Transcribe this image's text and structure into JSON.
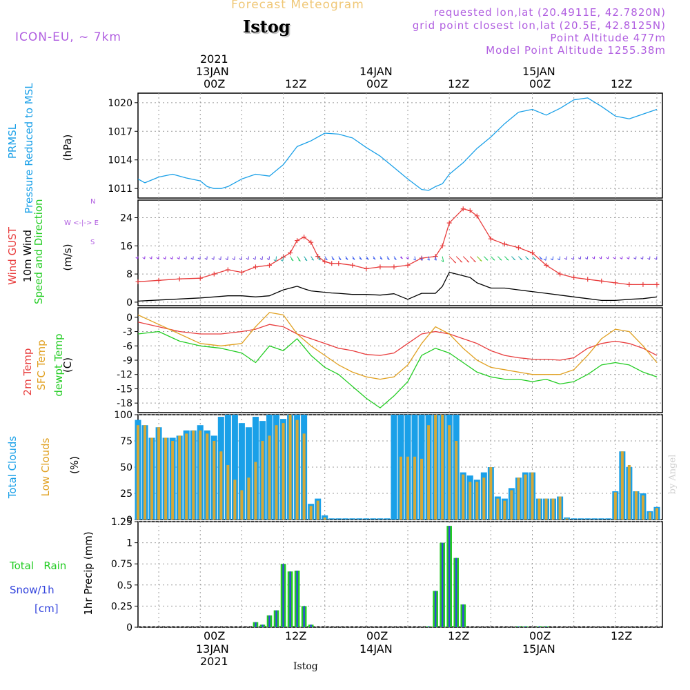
{
  "header": {
    "product": "Forecast Meteogram",
    "location": "Istog",
    "model": "ICON-EU, ~ 7km",
    "requested": "requested lon,lat (20.4911E, 42.7820N)",
    "grid": "grid point closest lon,lat (20.5E, 42.8125N)",
    "altitude": "Point Altitude 477m",
    "model_altitude": "Model Point Altitude 1255.38m",
    "credit": "by Angel",
    "footer_location": "Istog"
  },
  "time_axis": {
    "year": "2021",
    "top_ticks": [
      "00Z",
      "12Z",
      "00Z",
      "12Z",
      "00Z",
      "12Z"
    ],
    "dates": [
      "13JAN",
      "14JAN",
      "15JAN"
    ]
  },
  "panels": {
    "pressure": {
      "label1": "PRMSL",
      "label2": "Pressure Reduced to MSL",
      "unit": "(hPa)"
    },
    "wind": {
      "label1": "Wind GUST",
      "label2": "10m Wind",
      "label3": "Speed and Direction",
      "unit": "(m/s)",
      "compass_n": "N",
      "compass_s": "S",
      "compass_ew": "W <-|-> E"
    },
    "temp": {
      "label1": "2m Temp",
      "label2": "SFC Temp",
      "label3": "dewpt Temp",
      "unit": "(C)"
    },
    "clouds": {
      "label1": "Total Clouds",
      "label2": "Low Clouds",
      "unit": "(%)"
    },
    "precip": {
      "label1": "Total",
      "label1b": "Rain",
      "label2": "Snow/1h",
      "label3": "[cm]",
      "unit": "1hr Precip (mm)"
    }
  },
  "colors": {
    "pressure": "#1aa0e8",
    "gust": "#e83c3c",
    "wind": "#000000",
    "t2m": "#e83c3c",
    "tsfc": "#e0a020",
    "dewpt": "#22cc22",
    "total_clouds": "#1aa0e8",
    "low_clouds": "#d4a838",
    "rain": "#22cc22",
    "snow": "#3344dd",
    "title_orange": "#f0c878",
    "purple": "#b05ee0"
  },
  "chart_data": [
    {
      "type": "line",
      "name": "pressure",
      "ylim": [
        1010,
        1021
      ],
      "yticks": [
        "1011",
        "1014",
        "1017",
        "1020"
      ],
      "ytick_values": [
        1011,
        1014,
        1017,
        1020
      ],
      "x": [
        -9,
        -8,
        -6,
        -4,
        -2,
        0,
        1,
        2,
        3,
        4,
        6,
        8,
        10,
        12,
        14,
        16,
        18,
        20,
        22,
        24,
        26,
        28,
        30,
        32,
        33,
        34,
        35,
        36,
        38,
        40,
        42,
        44,
        46,
        48,
        50,
        52,
        54,
        56,
        58,
        60,
        62,
        64,
        66
      ],
      "series": [
        {
          "name": "PRMSL",
          "values": [
            1012.0,
            1011.6,
            1012.2,
            1012.5,
            1012.1,
            1011.8,
            1011.2,
            1011.0,
            1011.0,
            1011.2,
            1012.0,
            1012.5,
            1012.3,
            1013.5,
            1015.4,
            1016.0,
            1016.8,
            1016.7,
            1016.3,
            1015.3,
            1014.4,
            1013.2,
            1012.0,
            1010.9,
            1010.8,
            1011.2,
            1011.5,
            1012.5,
            1013.7,
            1015.2,
            1016.4,
            1017.8,
            1019.0,
            1019.3,
            1018.7,
            1019.4,
            1020.3,
            1020.5,
            1019.6,
            1018.6,
            1018.3,
            1018.8,
            1019.3
          ]
        }
      ]
    },
    {
      "type": "line",
      "name": "wind",
      "ylim": [
        -1,
        29
      ],
      "yticks": [
        "0",
        "8",
        "16",
        "24"
      ],
      "ytick_values": [
        0,
        8,
        16,
        24
      ],
      "x": [
        -9,
        -6,
        -3,
        0,
        2,
        4,
        6,
        8,
        10,
        12,
        13,
        14,
        15,
        16,
        17,
        18,
        19,
        20,
        22,
        24,
        26,
        28,
        30,
        32,
        34,
        35,
        36,
        38,
        39,
        40,
        42,
        44,
        46,
        48,
        50,
        52,
        54,
        56,
        58,
        60,
        62,
        64,
        66
      ],
      "series": [
        {
          "name": "Wind GUST",
          "values": [
            5.8,
            6.2,
            6.6,
            6.8,
            8.0,
            9.2,
            8.5,
            10.0,
            10.5,
            12.8,
            14.0,
            17.5,
            18.5,
            17.0,
            13.0,
            11.5,
            11.0,
            11.0,
            10.5,
            9.5,
            10.0,
            10.0,
            10.5,
            12.5,
            13.0,
            16.0,
            22.5,
            26.5,
            26.0,
            24.5,
            18.0,
            16.5,
            15.5,
            14.0,
            10.5,
            8.0,
            7.0,
            6.5,
            6.0,
            5.5,
            5.0,
            5.0,
            5.0
          ]
        },
        {
          "name": "10m Wind",
          "values": [
            0.3,
            0.6,
            0.9,
            1.2,
            1.5,
            1.8,
            1.8,
            1.5,
            1.8,
            3.5,
            4.0,
            4.5,
            3.8,
            3.2,
            3.0,
            2.8,
            2.6,
            2.5,
            2.2,
            2.2,
            2.0,
            2.4,
            0.8,
            2.5,
            2.5,
            4.5,
            8.5,
            7.5,
            7.0,
            5.5,
            4.0,
            4.0,
            3.5,
            3.0,
            2.5,
            2.0,
            1.5,
            1.0,
            0.5,
            0.5,
            0.8,
            1.0,
            1.5
          ]
        }
      ]
    },
    {
      "type": "line",
      "name": "temperature",
      "ylim": [
        -20,
        2
      ],
      "yticks": [
        "0",
        "-3",
        "-6",
        "-9",
        "-12",
        "-15",
        "-18"
      ],
      "ytick_values": [
        0,
        -3,
        -6,
        -9,
        -12,
        -15,
        -18
      ],
      "x": [
        -9,
        -6,
        -3,
        0,
        3,
        6,
        8,
        10,
        12,
        14,
        16,
        18,
        20,
        22,
        24,
        26,
        28,
        30,
        32,
        34,
        36,
        38,
        40,
        42,
        44,
        46,
        48,
        50,
        52,
        54,
        56,
        58,
        60,
        62,
        64,
        66
      ],
      "series": [
        {
          "name": "2m Temp",
          "values": [
            -1.0,
            -2.0,
            -3.0,
            -3.5,
            -3.5,
            -3.0,
            -2.5,
            -1.5,
            -2.0,
            -3.5,
            -4.5,
            -5.5,
            -6.5,
            -7.0,
            -7.8,
            -8.0,
            -7.5,
            -5.5,
            -3.5,
            -3.0,
            -3.5,
            -4.5,
            -5.5,
            -7.0,
            -8.0,
            -8.5,
            -8.8,
            -8.8,
            -9.0,
            -8.5,
            -6.5,
            -5.5,
            -5.0,
            -5.5,
            -6.5,
            -8.0
          ]
        },
        {
          "name": "SFC Temp",
          "values": [
            0.5,
            -1.5,
            -3.5,
            -5.5,
            -6.0,
            -5.5,
            -2.0,
            1.0,
            0.5,
            -3.5,
            -6.0,
            -8.0,
            -10.0,
            -11.5,
            -12.5,
            -13.0,
            -12.5,
            -10.0,
            -5.5,
            -2.0,
            -3.5,
            -6.5,
            -9.0,
            -10.5,
            -11.0,
            -11.5,
            -12.0,
            -12.0,
            -12.0,
            -11.0,
            -8.0,
            -4.5,
            -2.5,
            -3.0,
            -6.0,
            -9.5
          ]
        },
        {
          "name": "dewpt Temp",
          "values": [
            -3.5,
            -3.0,
            -5.0,
            -6.0,
            -6.5,
            -7.5,
            -9.5,
            -6.0,
            -7.0,
            -4.5,
            -8.0,
            -10.5,
            -12.0,
            -14.5,
            -17.0,
            -19.0,
            -16.5,
            -13.5,
            -8.0,
            -6.5,
            -7.5,
            -9.5,
            -11.5,
            -12.5,
            -13.0,
            -13.0,
            -13.5,
            -13.0,
            -14.0,
            -13.5,
            -12.0,
            -10.0,
            -9.5,
            -10.0,
            -11.5,
            -12.5
          ]
        }
      ]
    },
    {
      "type": "bar",
      "name": "clouds",
      "ylim": [
        0,
        100
      ],
      "yticks": [
        "0",
        "25",
        "50",
        "75",
        "100"
      ],
      "ytick_values": [
        0,
        25,
        50,
        75,
        100
      ],
      "x": [
        -9,
        -8,
        -7,
        -6,
        -5,
        -4,
        -3,
        -2,
        -1,
        0,
        1,
        2,
        3,
        4,
        5,
        6,
        7,
        8,
        9,
        10,
        11,
        12,
        13,
        14,
        15,
        16,
        17,
        18,
        19,
        20,
        21,
        22,
        23,
        24,
        25,
        26,
        27,
        28,
        29,
        30,
        31,
        32,
        33,
        34,
        35,
        36,
        37,
        38,
        39,
        40,
        41,
        42,
        43,
        44,
        45,
        46,
        47,
        48,
        49,
        50,
        51,
        52,
        53,
        54,
        55,
        56,
        57,
        58,
        59,
        60,
        61,
        62,
        63,
        64,
        65,
        66
      ],
      "series": [
        {
          "name": "Total Clouds",
          "values": [
            95,
            90,
            78,
            88,
            78,
            78,
            80,
            85,
            85,
            90,
            85,
            80,
            98,
            100,
            100,
            92,
            88,
            98,
            94,
            100,
            100,
            96,
            100,
            100,
            100,
            15,
            20,
            4,
            0,
            0,
            0,
            0,
            0,
            0,
            0,
            0,
            0,
            100,
            100,
            100,
            100,
            100,
            100,
            100,
            100,
            100,
            100,
            45,
            42,
            38,
            45,
            50,
            22,
            20,
            30,
            40,
            45,
            45,
            20,
            20,
            20,
            22,
            2,
            0,
            0,
            0,
            0,
            0,
            0,
            27,
            65,
            50,
            27,
            25,
            8,
            12
          ]
        },
        {
          "name": "Low Clouds",
          "values": [
            90,
            90,
            78,
            88,
            78,
            75,
            80,
            82,
            85,
            85,
            82,
            75,
            65,
            52,
            38,
            28,
            40,
            55,
            75,
            80,
            90,
            92,
            100,
            95,
            82,
            13,
            18,
            2,
            0,
            0,
            0,
            0,
            0,
            0,
            0,
            0,
            0,
            0,
            60,
            60,
            60,
            58,
            90,
            100,
            100,
            90,
            75,
            43,
            36,
            36,
            40,
            50,
            20,
            18,
            28,
            40,
            43,
            45,
            20,
            20,
            20,
            22,
            1,
            0,
            0,
            0,
            0,
            0,
            0,
            26,
            65,
            52,
            27,
            23,
            7,
            11
          ]
        }
      ]
    },
    {
      "type": "bar",
      "name": "precipitation",
      "ylim": [
        0,
        1.25
      ],
      "yticks": [
        "0",
        "0.25",
        "0.5",
        "0.75",
        "1",
        "1.25"
      ],
      "ytick_values": [
        0,
        0.25,
        0.5,
        0.75,
        1,
        1.25
      ],
      "x": [
        8,
        9,
        10,
        11,
        12,
        13,
        14,
        15,
        16,
        17,
        33,
        34,
        35,
        36,
        37,
        38,
        39,
        46,
        47,
        49,
        50
      ],
      "series": [
        {
          "name": "Total Rain",
          "values": [
            0.06,
            0.03,
            0.14,
            0.2,
            0.75,
            0.66,
            0.67,
            0.25,
            0.03,
            0.0,
            0.01,
            0.43,
            1.0,
            1.2,
            0.82,
            0.27,
            0.0,
            0.01,
            0.01,
            0.01,
            0.01
          ]
        },
        {
          "name": "Snow/1h",
          "values": [
            0.06,
            0.03,
            0.14,
            0.2,
            0.75,
            0.66,
            0.67,
            0.25,
            0.03,
            0.0,
            0.01,
            0.43,
            1.0,
            1.2,
            0.82,
            0.27,
            0.0,
            0.01,
            0.01,
            0.01,
            0.01
          ]
        }
      ]
    }
  ]
}
